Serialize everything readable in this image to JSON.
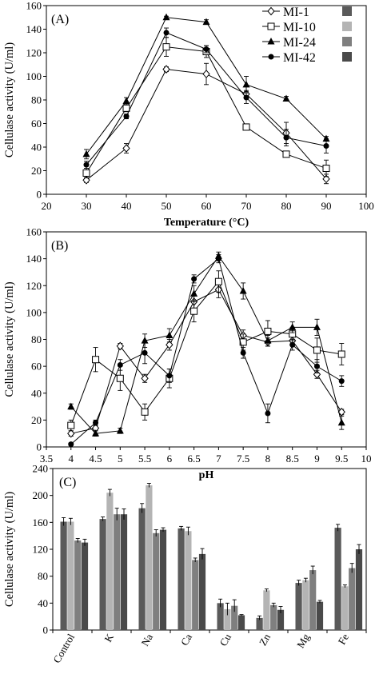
{
  "legend": {
    "entries": [
      {
        "name": "MI-1",
        "marker": "diamond-open",
        "bar_color": "#5a5a5a"
      },
      {
        "name": "MI-10",
        "marker": "square-open",
        "bar_color": "#b4b4b4"
      },
      {
        "name": "MI-24",
        "marker": "triangle-filled",
        "bar_color": "#7f7f7f"
      },
      {
        "name": "MI-42",
        "marker": "circle-filled",
        "bar_color": "#4a4a4a"
      }
    ],
    "placement": "top-right of panel A"
  },
  "chart_data": [
    {
      "panel_label": "(A)",
      "type": "line",
      "xlabel": "Temperature (°C)",
      "ylabel": "Cellulase activity (U/ml)",
      "xlim": [
        20,
        100
      ],
      "ylim": [
        0,
        160
      ],
      "xticks": [
        "20",
        "30",
        "40",
        "50",
        "60",
        "70",
        "80",
        "90",
        "100"
      ],
      "yticks": [
        "0",
        "20",
        "40",
        "60",
        "80",
        "100",
        "120",
        "140",
        "160"
      ],
      "x": [
        30,
        40,
        50,
        60,
        70,
        80,
        90
      ],
      "series": [
        {
          "name": "MI-1",
          "values": [
            12,
            39,
            106,
            102,
            85,
            52,
            13
          ],
          "errors": [
            2,
            4,
            2,
            9,
            3,
            9,
            4
          ]
        },
        {
          "name": "MI-10",
          "values": [
            18,
            73,
            125,
            121,
            57,
            34,
            22
          ],
          "errors": [
            4,
            3,
            8,
            5,
            2,
            2,
            7
          ]
        },
        {
          "name": "MI-24",
          "values": [
            34,
            79,
            150,
            146,
            93,
            81,
            47
          ],
          "errors": [
            4,
            3,
            1,
            2,
            7,
            2,
            2
          ]
        },
        {
          "name": "MI-42",
          "values": [
            25,
            66,
            137,
            123,
            82,
            48,
            41
          ],
          "errors": [
            3,
            2,
            4,
            3,
            5,
            7,
            6
          ]
        }
      ]
    },
    {
      "panel_label": "(B)",
      "type": "line",
      "xlabel": "pH",
      "ylabel": "Cellulase activity (U/ml)",
      "xlim": [
        3.5,
        10
      ],
      "ylim": [
        0,
        160
      ],
      "xticks": [
        "3.5",
        "4",
        "4.5",
        "5",
        "5.5",
        "6",
        "6.5",
        "7",
        "7.5",
        "8",
        "8.5",
        "9",
        "9.5",
        "10"
      ],
      "yticks": [
        "0",
        "20",
        "40",
        "60",
        "80",
        "100",
        "120",
        "140",
        "160"
      ],
      "x": [
        4,
        4.5,
        5,
        5.5,
        6,
        6.5,
        7,
        7.5,
        8,
        8.5,
        9,
        9.5
      ],
      "series": [
        {
          "name": "MI-1",
          "values": [
            10,
            14,
            75,
            51,
            76,
            108,
            117,
            83,
            78,
            79,
            54,
            26
          ],
          "errors": [
            2,
            2,
            2,
            3,
            4,
            5,
            6,
            4,
            3,
            3,
            3,
            2
          ]
        },
        {
          "name": "MI-10",
          "values": [
            16,
            65,
            51,
            26,
            51,
            101,
            123,
            78,
            86,
            84,
            72,
            69
          ],
          "errors": [
            4,
            9,
            9,
            6,
            7,
            8,
            8,
            6,
            8,
            5,
            9,
            8
          ]
        },
        {
          "name": "MI-24",
          "values": [
            30,
            10,
            12,
            79,
            83,
            114,
            142,
            116,
            79,
            89,
            89,
            18
          ],
          "errors": [
            2,
            2,
            2,
            5,
            5,
            6,
            3,
            6,
            4,
            4,
            6,
            5
          ]
        },
        {
          "name": "MI-42",
          "values": [
            2,
            18,
            61,
            70,
            53,
            125,
            140,
            70,
            25,
            76,
            60,
            49
          ],
          "errors": [
            1,
            2,
            4,
            8,
            5,
            3,
            3,
            4,
            7,
            4,
            5,
            4
          ]
        }
      ]
    },
    {
      "panel_label": "(C)",
      "type": "bar",
      "ylabel": "Cellulase activity (U/ml)",
      "ylim": [
        0,
        240
      ],
      "yticks": [
        "0",
        "40",
        "80",
        "120",
        "160",
        "200",
        "240"
      ],
      "categories": [
        "Control",
        "K",
        "Na",
        "Ca",
        "Cu",
        "Zn",
        "Mg",
        "Fe"
      ],
      "series": [
        {
          "name": "MI-1",
          "values": [
            161,
            165,
            181,
            151,
            40,
            18,
            70,
            152
          ],
          "errors": [
            6,
            3,
            7,
            3,
            6,
            3,
            4,
            5
          ]
        },
        {
          "name": "MI-10",
          "values": [
            161,
            204,
            215,
            147,
            31,
            59,
            74,
            65
          ],
          "errors": [
            5,
            5,
            3,
            6,
            9,
            2,
            3,
            2
          ]
        },
        {
          "name": "MI-24",
          "values": [
            133,
            172,
            144,
            104,
            36,
            37,
            89,
            92
          ],
          "errors": [
            3,
            9,
            5,
            3,
            9,
            3,
            6,
            7
          ]
        },
        {
          "name": "MI-42",
          "values": [
            130,
            172,
            149,
            113,
            22,
            30,
            42,
            120
          ],
          "errors": [
            5,
            8,
            3,
            8,
            1,
            5,
            2,
            7
          ]
        }
      ]
    }
  ]
}
